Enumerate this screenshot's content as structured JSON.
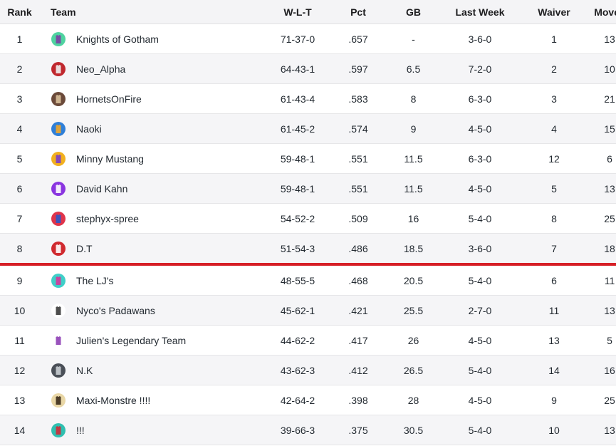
{
  "headers": {
    "rank": "Rank",
    "team": "Team",
    "wlt": "W-L-T",
    "pct": "Pct",
    "gb": "GB",
    "last_week": "Last Week",
    "waiver": "Waiver",
    "moves": "Moves"
  },
  "rows": [
    {
      "rank": "1",
      "team": "Knights of Gotham",
      "wlt": "71-37-0",
      "pct": ".657",
      "gb": "-",
      "last_week": "3-6-0",
      "waiver": "1",
      "moves": "13",
      "logo": "mint-jersey-icon",
      "logo_bg": "#4fd3a0",
      "logo_fg": "#7b3fa3"
    },
    {
      "rank": "2",
      "team": "Neo_Alpha",
      "wlt": "64-43-1",
      "pct": ".597",
      "gb": "6.5",
      "last_week": "7-2-0",
      "waiver": "2",
      "moves": "10",
      "logo": "red-avatar-icon",
      "logo_bg": "#c0282e",
      "logo_fg": "#f0f0f0"
    },
    {
      "rank": "3",
      "team": "HornetsOnFire",
      "wlt": "61-43-4",
      "pct": ".583",
      "gb": "8",
      "last_week": "6-3-0",
      "waiver": "3",
      "moves": "21",
      "logo": "hornet-avatar-icon",
      "logo_bg": "#6b4a3a",
      "logo_fg": "#d9c09a"
    },
    {
      "rank": "4",
      "team": "Naoki",
      "wlt": "61-45-2",
      "pct": ".574",
      "gb": "9",
      "last_week": "4-5-0",
      "waiver": "4",
      "moves": "15",
      "logo": "blue-jersey-icon",
      "logo_bg": "#2f7fd8",
      "logo_fg": "#f2a72a"
    },
    {
      "rank": "5",
      "team": "Minny Mustang",
      "wlt": "59-48-1",
      "pct": ".551",
      "gb": "11.5",
      "last_week": "6-3-0",
      "waiver": "12",
      "moves": "6",
      "logo": "gold-jersey-icon",
      "logo_bg": "#f2b01e",
      "logo_fg": "#7a3fc9"
    },
    {
      "rank": "6",
      "team": "David Kahn",
      "wlt": "59-48-1",
      "pct": ".551",
      "gb": "11.5",
      "last_week": "4-5-0",
      "waiver": "5",
      "moves": "13",
      "logo": "purple-jersey-icon",
      "logo_bg": "#8a35e0",
      "logo_fg": "#ffffff"
    },
    {
      "rank": "7",
      "team": "stephyx-spree",
      "wlt": "54-52-2",
      "pct": ".509",
      "gb": "16",
      "last_week": "5-4-0",
      "waiver": "8",
      "moves": "25",
      "logo": "red-blue-jersey-icon",
      "logo_bg": "#e0344a",
      "logo_fg": "#2a58c8"
    },
    {
      "rank": "8",
      "team": "D.T",
      "wlt": "51-54-3",
      "pct": ".486",
      "gb": "18.5",
      "last_week": "3-6-0",
      "waiver": "7",
      "moves": "18",
      "logo": "red-face-icon",
      "logo_bg": "#d02a2f",
      "logo_fg": "#ffffff"
    },
    {
      "rank": "9",
      "team": "The LJ's",
      "wlt": "48-55-5",
      "pct": ".468",
      "gb": "20.5",
      "last_week": "5-4-0",
      "waiver": "6",
      "moves": "11",
      "logo": "teal-jersey-icon",
      "logo_bg": "#3fcfc8",
      "logo_fg": "#d6359a"
    },
    {
      "rank": "10",
      "team": "Nyco's Padawans",
      "wlt": "45-62-1",
      "pct": ".421",
      "gb": "25.5",
      "last_week": "2-7-0",
      "waiver": "11",
      "moves": "13",
      "logo": "character-icon",
      "logo_bg": "#ffffff",
      "logo_fg": "#3a3a3a"
    },
    {
      "rank": "11",
      "team": "Julien's Legendary Team",
      "wlt": "44-62-2",
      "pct": ".417",
      "gb": "26",
      "last_week": "4-5-0",
      "waiver": "13",
      "moves": "5",
      "logo": "purple-tank-icon",
      "logo_bg": "#ffffff",
      "logo_fg": "#8e3fb5"
    },
    {
      "rank": "12",
      "team": "N.K",
      "wlt": "43-62-3",
      "pct": ".412",
      "gb": "26.5",
      "last_week": "5-4-0",
      "waiver": "14",
      "moves": "16",
      "logo": "gray-jersey-icon",
      "logo_bg": "#4a4f57",
      "logo_fg": "#c9cdd3"
    },
    {
      "rank": "13",
      "team": "Maxi-Monstre !!!!",
      "wlt": "42-64-2",
      "pct": ".398",
      "gb": "28",
      "last_week": "4-5-0",
      "waiver": "9",
      "moves": "25",
      "logo": "monster-icon",
      "logo_bg": "#e9d7a6",
      "logo_fg": "#3a2a18"
    },
    {
      "rank": "14",
      "team": "!!!",
      "wlt": "39-66-3",
      "pct": ".375",
      "gb": "30.5",
      "last_week": "5-4-0",
      "waiver": "10",
      "moves": "13",
      "logo": "teal-red-jersey-icon",
      "logo_bg": "#2fbfb0",
      "logo_fg": "#d02a3a"
    }
  ],
  "playoff_cutoff_after_rank": "8",
  "colors": {
    "cutoff_line": "#d61f26",
    "header_bg": "#f4f4f6",
    "alt_row_bg": "#f5f5f7"
  }
}
